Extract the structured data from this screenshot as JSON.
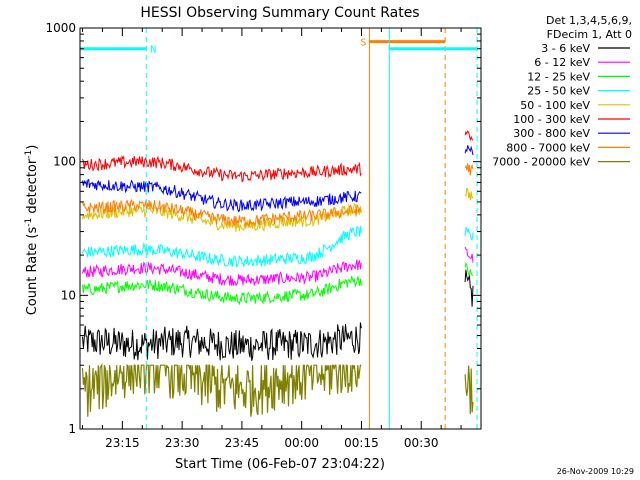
{
  "chart_data": {
    "type": "line",
    "title": "HESSI Observing Summary Count Rates",
    "xlabel": "Start Time (06-Feb-07 23:04:22)",
    "ylabel_main": "Count Rate (s",
    "ylabel_sup1": "-1",
    "ylabel_mid": " detector",
    "ylabel_sup2": "-1",
    "ylabel_end": ")",
    "yscale": "log",
    "ylim": [
      1,
      1000
    ],
    "xlim": [
      "23:04:22",
      "00:45:00"
    ],
    "y_ticks": [
      {
        "value": 1,
        "label": "1"
      },
      {
        "value": 10,
        "label": "10"
      },
      {
        "value": 100,
        "label": "100"
      },
      {
        "value": 1000,
        "label": "1000"
      }
    ],
    "x_ticks": [
      {
        "value": "23:15",
        "label": "23:15"
      },
      {
        "value": "23:30",
        "label": "23:30"
      },
      {
        "value": "23:45",
        "label": "23:45"
      },
      {
        "value": "00:00",
        "label": "00:00"
      },
      {
        "value": "00:15",
        "label": "00:15"
      },
      {
        "value": "00:30",
        "label": "00:30"
      }
    ],
    "legend": {
      "placement": "right",
      "header": [
        "Det 1,3,4,5,6,9,",
        "FDecim 1, Att 0"
      ]
    },
    "series": [
      {
        "name": "3 - 6 keV",
        "color": "#000000",
        "values": [
          {
            "x": "23:05",
            "y": 4.5
          },
          {
            "x": "23:20",
            "y": 4.3
          },
          {
            "x": "23:30",
            "y": 4.5
          },
          {
            "x": "23:45",
            "y": 4.2
          },
          {
            "x": "00:00",
            "y": 4.3
          },
          {
            "x": "00:15",
            "y": 4.8
          },
          {
            "x": "00:41",
            "y": 12
          },
          {
            "x": "00:43",
            "y": 10
          }
        ]
      },
      {
        "name": "6 - 12 keV",
        "color": "#ff00ff",
        "values": [
          {
            "x": "23:05",
            "y": 15
          },
          {
            "x": "23:20",
            "y": 16
          },
          {
            "x": "23:45",
            "y": 13
          },
          {
            "x": "00:00",
            "y": 13.5
          },
          {
            "x": "00:15",
            "y": 17
          },
          {
            "x": "00:41",
            "y": 21
          },
          {
            "x": "00:43",
            "y": 19
          }
        ]
      },
      {
        "name": "12 - 25 keV",
        "color": "#00ff00",
        "values": [
          {
            "x": "23:05",
            "y": 11
          },
          {
            "x": "23:20",
            "y": 12
          },
          {
            "x": "23:45",
            "y": 9.5
          },
          {
            "x": "00:00",
            "y": 10
          },
          {
            "x": "00:15",
            "y": 13
          },
          {
            "x": "00:41",
            "y": 16
          },
          {
            "x": "00:43",
            "y": 14
          }
        ]
      },
      {
        "name": "25 - 50 keV",
        "color": "#00ffff",
        "values": [
          {
            "x": "23:05",
            "y": 21
          },
          {
            "x": "23:20",
            "y": 22
          },
          {
            "x": "23:45",
            "y": 18
          },
          {
            "x": "00:00",
            "y": 19
          },
          {
            "x": "00:15",
            "y": 30
          },
          {
            "x": "00:41",
            "y": 29
          },
          {
            "x": "00:43",
            "y": 27
          }
        ]
      },
      {
        "name": "50 - 100 keV",
        "color": "#e0c000",
        "values": [
          {
            "x": "23:05",
            "y": 40
          },
          {
            "x": "23:20",
            "y": 43
          },
          {
            "x": "23:45",
            "y": 33
          },
          {
            "x": "00:00",
            "y": 36
          },
          {
            "x": "00:15",
            "y": 44
          },
          {
            "x": "00:41",
            "y": 60
          },
          {
            "x": "00:43",
            "y": 55
          }
        ]
      },
      {
        "name": "100 - 300 keV",
        "color": "#ff0000",
        "values": [
          {
            "x": "23:05",
            "y": 95
          },
          {
            "x": "23:20",
            "y": 100
          },
          {
            "x": "23:45",
            "y": 78
          },
          {
            "x": "00:00",
            "y": 83
          },
          {
            "x": "00:15",
            "y": 88
          },
          {
            "x": "00:41",
            "y": 160
          },
          {
            "x": "00:43",
            "y": 145
          }
        ]
      },
      {
        "name": "300 - 800 keV",
        "color": "#0000ff",
        "values": [
          {
            "x": "23:05",
            "y": 68
          },
          {
            "x": "23:20",
            "y": 65
          },
          {
            "x": "23:45",
            "y": 47
          },
          {
            "x": "00:00",
            "y": 50
          },
          {
            "x": "00:15",
            "y": 55
          },
          {
            "x": "00:41",
            "y": 125
          },
          {
            "x": "00:43",
            "y": 115
          }
        ]
      },
      {
        "name": "800 - 7000 keV",
        "color": "#ff8000",
        "values": [
          {
            "x": "23:05",
            "y": 45
          },
          {
            "x": "23:20",
            "y": 47
          },
          {
            "x": "23:45",
            "y": 36
          },
          {
            "x": "00:00",
            "y": 39
          },
          {
            "x": "00:15",
            "y": 43
          },
          {
            "x": "00:41",
            "y": 92
          },
          {
            "x": "00:43",
            "y": 85
          }
        ]
      },
      {
        "name": "7000 - 20000 keV",
        "color": "#808000",
        "values": [
          {
            "x": "23:05",
            "y": 2
          },
          {
            "x": "23:20",
            "y": 3
          },
          {
            "x": "23:45",
            "y": 2
          },
          {
            "x": "00:00",
            "y": 2.5
          },
          {
            "x": "00:15",
            "y": 3
          },
          {
            "x": "00:41",
            "y": 2.5
          },
          {
            "x": "00:43",
            "y": 2
          }
        ]
      }
    ],
    "annotations": [
      {
        "label": "N",
        "color": "#00ffff",
        "x_start": "23:04:22",
        "x_end": "23:21",
        "y": 700
      },
      {
        "label": "S",
        "color": "#ff8000",
        "x_start": "00:17",
        "x_end": "00:36",
        "y": 790
      },
      {
        "label": "",
        "color": "#00ffff",
        "x_start": "00:22",
        "x_end": "00:44",
        "y": 700
      }
    ],
    "footer_date": "26-Nov-2009 10:29"
  }
}
